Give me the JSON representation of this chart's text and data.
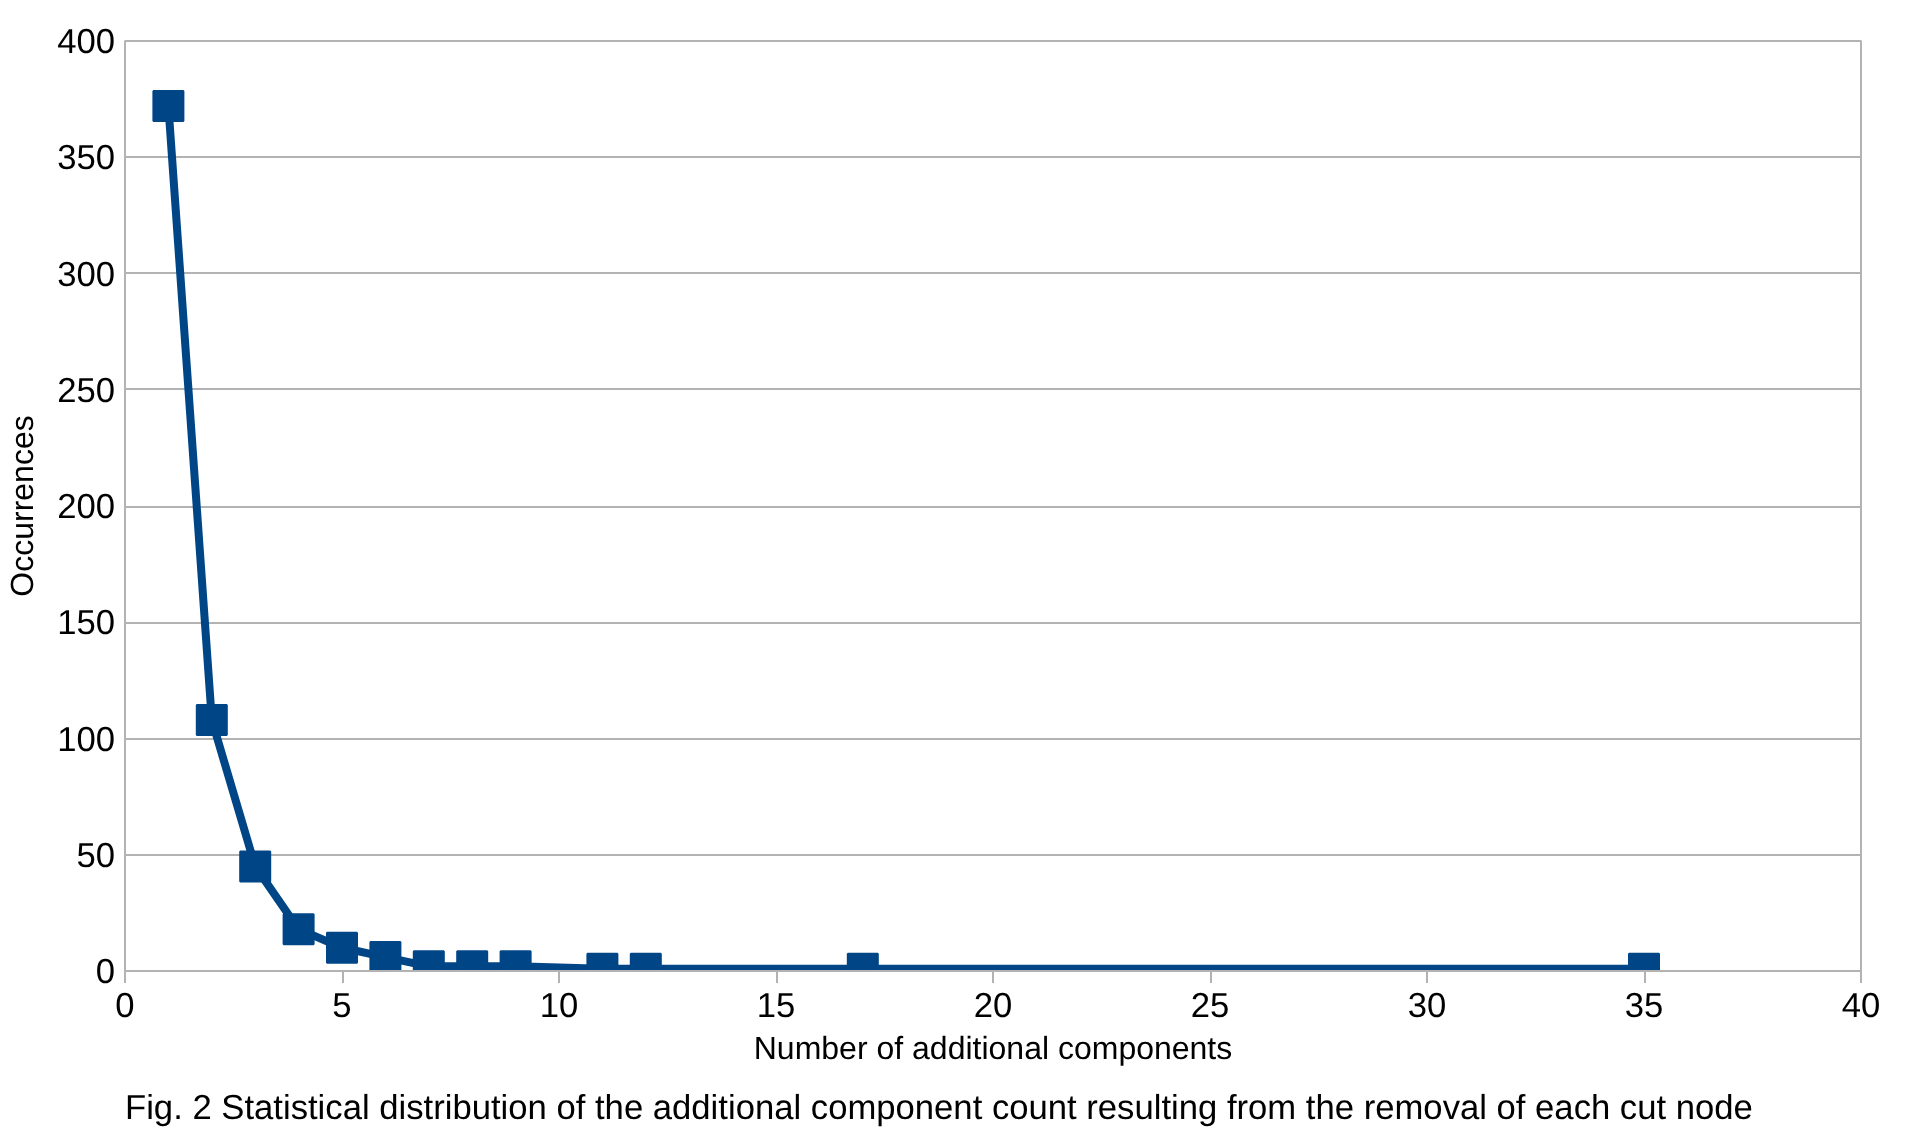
{
  "chart_data": {
    "type": "line",
    "xlabel": "Number of additional components",
    "ylabel": "Occurrences",
    "x": [
      1,
      2,
      3,
      4,
      5,
      6,
      7,
      8,
      9,
      11,
      12,
      17,
      35
    ],
    "series": [
      {
        "color": "#004586",
        "values": [
          372,
          108,
          45,
          18,
          10,
          6,
          2,
          2,
          2,
          1,
          1,
          1,
          1
        ]
      }
    ],
    "xlim": [
      0,
      40
    ],
    "xticks": [
      0,
      5,
      10,
      15,
      20,
      25,
      30,
      35,
      40
    ],
    "ylim": [
      0,
      400
    ],
    "yticks": [
      0,
      50,
      100,
      150,
      200,
      250,
      300,
      350,
      400
    ],
    "grid": "y",
    "marker": "square",
    "line_style": "solid",
    "annotations": [
      "Fig. 2  Statistical distribution of the additional component count resulting from the removal of each cut node"
    ]
  }
}
